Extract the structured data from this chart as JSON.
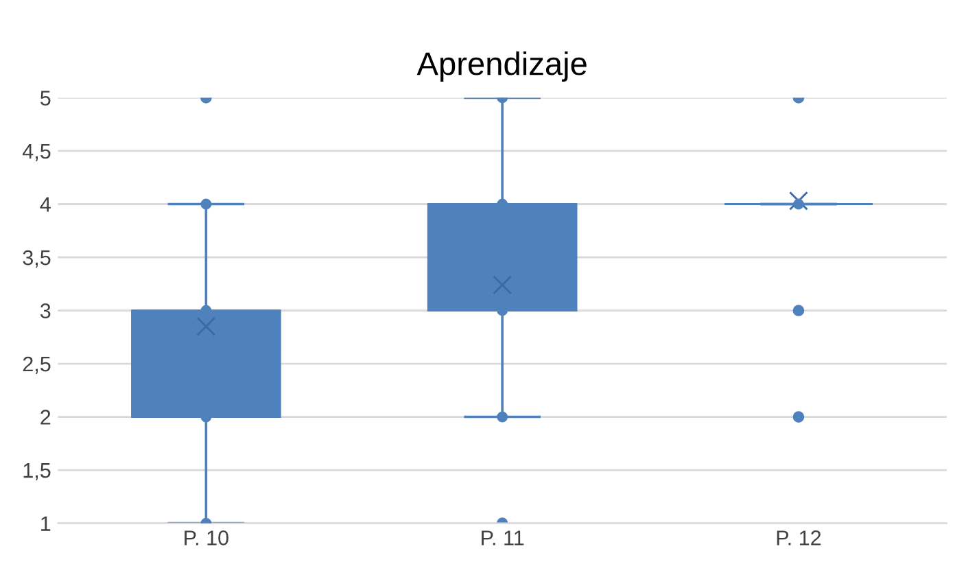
{
  "chart_data": {
    "type": "box",
    "title": "Aprendizaje",
    "categories": [
      "P. 10",
      "P. 11",
      "P. 12"
    ],
    "boxes": [
      {
        "low": 1,
        "q1": 2,
        "median": 3,
        "q3": 3,
        "high": 4,
        "mean": 2.85,
        "outliers": [
          5
        ]
      },
      {
        "low": 2,
        "q1": 3,
        "median": 3,
        "q3": 4,
        "high": 5,
        "mean": 3.24,
        "outliers": [
          1
        ]
      },
      {
        "low": 4,
        "q1": 4,
        "median": 4,
        "q3": 4,
        "high": 4,
        "mean": 4.03,
        "outliers": [
          2,
          3,
          5
        ]
      }
    ],
    "color": "#4f81bd",
    "series": [
      {
        "type": "scatter",
        "color": "#4f81bd",
        "x": [
          "P. 10",
          "P. 10",
          "P. 10",
          "P. 10",
          "P. 11",
          "P. 11",
          "P. 11",
          "P. 11",
          "P. 12"
        ],
        "values": [
          1,
          2,
          3,
          4,
          2,
          3,
          4,
          5,
          4
        ]
      }
    ],
    "ylim": [
      1,
      5
    ],
    "yticks": [
      1,
      {
        "value": 1.5,
        "label": "1,5"
      },
      2,
      {
        "value": 2.5,
        "label": "2,5"
      },
      3,
      {
        "value": 3.5,
        "label": "3,5"
      },
      4,
      {
        "value": 4.5,
        "label": "4,5"
      },
      5
    ],
    "grid": "y"
  }
}
